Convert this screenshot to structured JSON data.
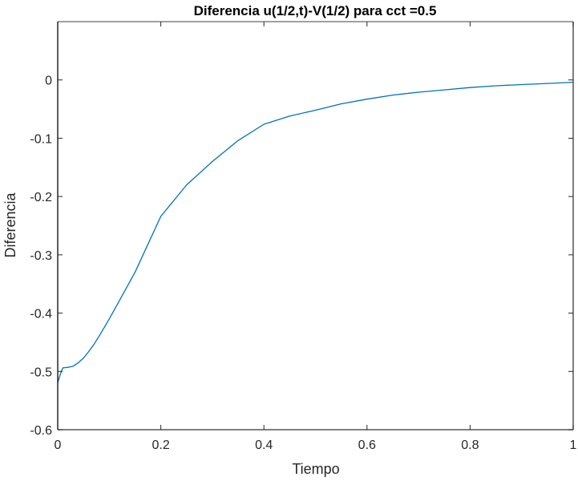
{
  "chart_data": {
    "type": "line",
    "title": "Diferencia u(1/2,t)-V(1/2) para cct =0.5",
    "xlabel": "Tiempo",
    "ylabel": "Diferencia",
    "xlim": [
      0,
      1
    ],
    "ylim": [
      -0.6,
      0.1
    ],
    "xticks": [
      0,
      0.2,
      0.4,
      0.6,
      0.8,
      1
    ],
    "xtick_labels": [
      "0",
      "0.2",
      "0.4",
      "0.6",
      "0.8",
      "1"
    ],
    "yticks": [
      0,
      -0.1,
      -0.2,
      -0.3,
      -0.4,
      -0.5,
      -0.6
    ],
    "ytick_labels": [
      "0",
      "-0.1",
      "-0.2",
      "-0.3",
      "-0.4",
      "-0.5",
      "-0.6"
    ],
    "grid": false,
    "legend": null,
    "series": [
      {
        "name": "Diferencia",
        "color": "#0072BD",
        "x": [
          0,
          0.005,
          0.01,
          0.02,
          0.03,
          0.04,
          0.05,
          0.06,
          0.07,
          0.08,
          0.09,
          0.1,
          0.12,
          0.15,
          0.2,
          0.25,
          0.3,
          0.35,
          0.4,
          0.45,
          0.5,
          0.55,
          0.6,
          0.65,
          0.7,
          0.75,
          0.8,
          0.85,
          0.9,
          0.95,
          1.0
        ],
        "y": [
          -0.52,
          -0.505,
          -0.494,
          -0.493,
          -0.491,
          -0.485,
          -0.477,
          -0.466,
          -0.454,
          -0.44,
          -0.425,
          -0.41,
          -0.378,
          -0.33,
          -0.234,
          -0.18,
          -0.14,
          -0.104,
          -0.076,
          -0.062,
          -0.052,
          -0.041,
          -0.033,
          -0.026,
          -0.021,
          -0.017,
          -0.013,
          -0.01,
          -0.008,
          -0.006,
          -0.004
        ]
      }
    ]
  }
}
